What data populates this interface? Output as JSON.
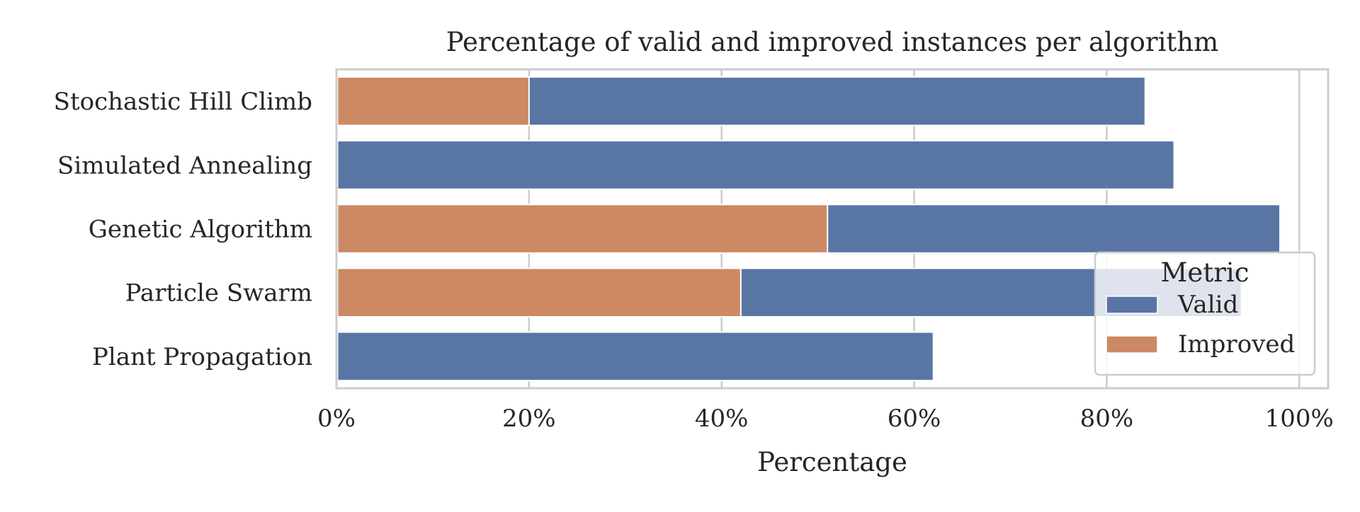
{
  "chart_data": {
    "type": "bar",
    "orientation": "horizontal",
    "layout": "overlaid",
    "title": "Percentage of valid and improved instances per algorithm",
    "xlabel": "Percentage",
    "ylabel": "",
    "xlim": [
      0,
      103
    ],
    "x_ticks": [
      0,
      20,
      40,
      60,
      80,
      100
    ],
    "x_tick_labels": [
      "0%",
      "20%",
      "40%",
      "60%",
      "80%",
      "100%"
    ],
    "grid": "vertical",
    "categories": [
      "Stochastic Hill Climb",
      "Simulated Annealing",
      "Genetic Algorithm",
      "Particle Swarm",
      "Plant Propagation"
    ],
    "series": [
      {
        "name": "Valid",
        "color": "#5975a4",
        "values": [
          84,
          87,
          98,
          94,
          62
        ]
      },
      {
        "name": "Improved",
        "color": "#cc8963",
        "values": [
          20,
          0,
          51,
          42,
          0
        ]
      }
    ],
    "legend": {
      "title": "Metric",
      "placement": "lower-right"
    }
  }
}
